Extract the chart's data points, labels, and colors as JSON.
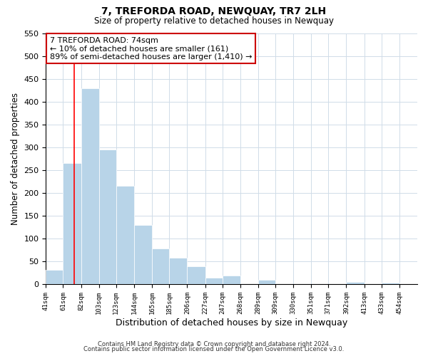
{
  "title": "7, TREFORDA ROAD, NEWQUAY, TR7 2LH",
  "subtitle": "Size of property relative to detached houses in Newquay",
  "xlabel": "Distribution of detached houses by size in Newquay",
  "ylabel": "Number of detached properties",
  "bar_left_edges": [
    41,
    61,
    82,
    103,
    123,
    144,
    165,
    185,
    206,
    227,
    247,
    268,
    289,
    309,
    330,
    351,
    371,
    392,
    413,
    433
  ],
  "bar_widths": [
    21,
    21,
    21,
    20,
    21,
    21,
    20,
    21,
    21,
    20,
    21,
    21,
    20,
    21,
    21,
    20,
    21,
    21,
    20,
    21
  ],
  "bar_heights": [
    32,
    265,
    430,
    295,
    215,
    130,
    79,
    59,
    40,
    14,
    20,
    0,
    10,
    0,
    0,
    0,
    0,
    5,
    0,
    4
  ],
  "bar_color": "#b8d4e8",
  "redline_x": 74,
  "ylim": [
    0,
    550
  ],
  "yticks": [
    0,
    50,
    100,
    150,
    200,
    250,
    300,
    350,
    400,
    450,
    500,
    550
  ],
  "xtick_labels": [
    "41sqm",
    "61sqm",
    "82sqm",
    "103sqm",
    "123sqm",
    "144sqm",
    "165sqm",
    "185sqm",
    "206sqm",
    "227sqm",
    "247sqm",
    "268sqm",
    "289sqm",
    "309sqm",
    "330sqm",
    "351sqm",
    "371sqm",
    "392sqm",
    "413sqm",
    "433sqm",
    "454sqm"
  ],
  "xtick_positions": [
    41,
    61,
    82,
    103,
    123,
    144,
    165,
    185,
    206,
    227,
    247,
    268,
    289,
    309,
    330,
    351,
    371,
    392,
    413,
    433,
    454
  ],
  "xlim_left": 41,
  "xlim_right": 475,
  "annotation_title": "7 TREFORDA ROAD: 74sqm",
  "annotation_line1": "← 10% of detached houses are smaller (161)",
  "annotation_line2": "89% of semi-detached houses are larger (1,410) →",
  "footer_line1": "Contains HM Land Registry data © Crown copyright and database right 2024.",
  "footer_line2": "Contains public sector information licensed under the Open Government Licence v3.0.",
  "background_color": "#ffffff",
  "grid_color": "#d0dce8"
}
